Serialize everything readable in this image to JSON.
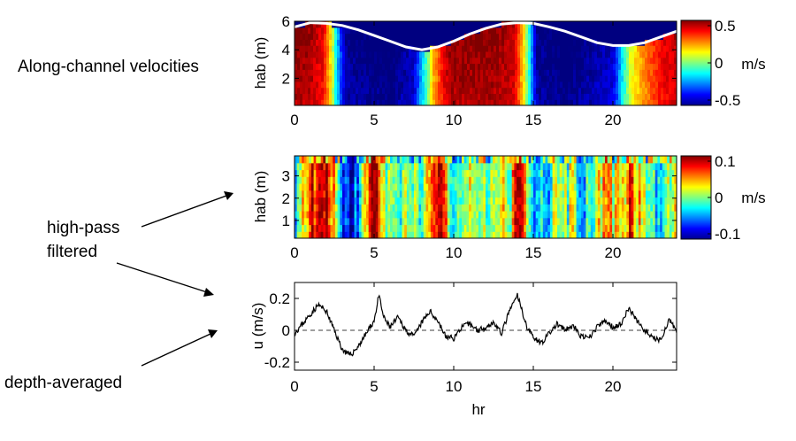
{
  "annotations": {
    "along_channel": "Along-channel velocities",
    "high_pass_line1": "high-pass",
    "high_pass_line2": "filtered",
    "depth_averaged": "depth-averaged"
  },
  "colors": {
    "colormap": "jet",
    "surface_line": "#ffffff",
    "series_line": "#000000"
  },
  "chart_data": [
    {
      "type": "heatmap",
      "ylabel": "hab (m)",
      "xlim": [
        0,
        24
      ],
      "ylim": [
        0.1,
        6
      ],
      "xticks": [
        "0",
        "5",
        "10",
        "15",
        "20"
      ],
      "yticks": [
        "2",
        "4",
        "6"
      ],
      "colorbar": {
        "unit": "m/s",
        "range": [
          -0.5,
          0.5
        ],
        "ticks": [
          "0.5",
          "0",
          "-0.5"
        ]
      },
      "surface_elevation": {
        "x": [
          0,
          1,
          2,
          3,
          4,
          5,
          6,
          7,
          8,
          9,
          10,
          11,
          12,
          13,
          14,
          15,
          16,
          17,
          18,
          19,
          20,
          21,
          22,
          23,
          24
        ],
        "y": [
          5.6,
          5.9,
          5.85,
          5.7,
          5.4,
          5.0,
          4.6,
          4.2,
          4.0,
          4.2,
          4.6,
          5.1,
          5.5,
          5.8,
          5.9,
          5.85,
          5.6,
          5.3,
          4.9,
          4.5,
          4.3,
          4.3,
          4.5,
          4.9,
          5.3
        ]
      },
      "velocity_profile": {
        "t": [
          0,
          1,
          1.8,
          2.3,
          2.7,
          3.2,
          6,
          7.5,
          8.2,
          8.7,
          9.3,
          9.8,
          12.5,
          13.8,
          14.5,
          15.2,
          17,
          20,
          20.6,
          21.1,
          21.6,
          22.3,
          23,
          24
        ],
        "v": [
          0.5,
          0.48,
          0.4,
          0.15,
          -0.2,
          -0.5,
          -0.55,
          -0.45,
          -0.1,
          0.2,
          0.4,
          0.5,
          0.5,
          0.45,
          0.1,
          -0.5,
          -0.55,
          -0.45,
          -0.15,
          0.1,
          0.2,
          0.3,
          0.4,
          0.45
        ]
      }
    },
    {
      "type": "heatmap",
      "ylabel": "hab (m)",
      "xlim": [
        0,
        24
      ],
      "ylim": [
        0.2,
        3.9
      ],
      "xticks": [
        "0",
        "5",
        "10",
        "15",
        "20"
      ],
      "yticks": [
        "1",
        "2",
        "3"
      ],
      "colorbar": {
        "unit": "m/s",
        "range": [
          -0.1,
          0.1
        ],
        "ticks": [
          "0.1",
          "0",
          "-0.1"
        ]
      },
      "velocity_profile": {
        "t": [
          0,
          0.5,
          1,
          1.5,
          2,
          2.5,
          3,
          3.5,
          4,
          4.5,
          5,
          5.5,
          6,
          6.5,
          7,
          7.5,
          8,
          8.5,
          9,
          9.5,
          10,
          10.5,
          11,
          11.5,
          12,
          12.5,
          13,
          13.5,
          14,
          14.5,
          15,
          15.5,
          16,
          16.5,
          17,
          17.5,
          18,
          18.5,
          19,
          19.5,
          20,
          20.5,
          21,
          21.5,
          22,
          22.5,
          23,
          23.5,
          24
        ],
        "v": [
          -0.02,
          0.01,
          0.06,
          0.09,
          0.08,
          0.03,
          -0.05,
          -0.08,
          -0.04,
          0.02,
          0.09,
          0.04,
          -0.02,
          -0.03,
          0.02,
          0.01,
          -0.02,
          0.06,
          0.1,
          0.05,
          -0.02,
          -0.03,
          0.01,
          0.02,
          -0.01,
          0.01,
          0.03,
          -0.01,
          0.1,
          0.05,
          -0.03,
          -0.04,
          -0.02,
          0.01,
          -0.01,
          0.02,
          -0.03,
          -0.02,
          0.01,
          0.06,
          0.02,
          0.01,
          0.07,
          0.04,
          0.02,
          -0.03,
          -0.03,
          0.02,
          0.01
        ]
      }
    },
    {
      "type": "line",
      "xlabel": "hr",
      "ylabel": "u (m/s)",
      "xlim": [
        0,
        24
      ],
      "ylim": [
        -0.25,
        0.3
      ],
      "xticks": [
        "0",
        "5",
        "10",
        "15",
        "20"
      ],
      "yticks": [
        "0.2",
        "0",
        "-0.2"
      ],
      "zero_line": "dashed",
      "series": [
        {
          "x": [
            0,
            0.5,
            1,
            1.5,
            2,
            2.5,
            3,
            3.5,
            4,
            4.5,
            5,
            5.3,
            5.6,
            6,
            6.5,
            7,
            7.5,
            8,
            8.5,
            9,
            9.5,
            10,
            10.5,
            11,
            11.5,
            12,
            12.5,
            13,
            13.5,
            14,
            14.3,
            14.6,
            15,
            15.5,
            16,
            16.5,
            17,
            17.5,
            18,
            18.5,
            19,
            19.5,
            20,
            20.5,
            21,
            21.5,
            22,
            22.5,
            23,
            23.5,
            24
          ],
          "y": [
            -0.02,
            0.04,
            0.1,
            0.16,
            0.12,
            0.0,
            -0.12,
            -0.16,
            -0.1,
            -0.02,
            0.06,
            0.22,
            0.08,
            0.02,
            0.08,
            0.0,
            -0.04,
            0.05,
            0.12,
            0.06,
            -0.04,
            -0.05,
            0.02,
            0.04,
            0.0,
            0.02,
            0.05,
            -0.02,
            0.12,
            0.22,
            0.12,
            0.02,
            -0.04,
            -0.08,
            -0.02,
            0.04,
            0.0,
            0.03,
            -0.04,
            -0.05,
            0.02,
            0.06,
            0.02,
            0.04,
            0.14,
            0.06,
            0.0,
            -0.05,
            -0.06,
            0.06,
            0.0
          ]
        }
      ]
    }
  ]
}
